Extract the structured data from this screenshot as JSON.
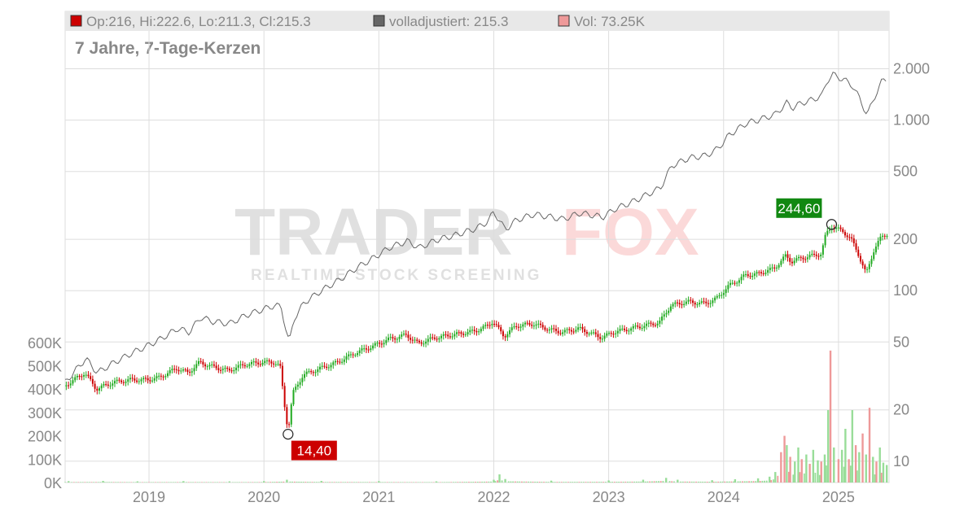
{
  "legend": {
    "ohlc_text": "Op:216, Hi:222.6, Lo:211.3, Cl:215.3",
    "adjusted_text": "volladjustiert: 215.3",
    "volume_text": "Vol: 73.25K"
  },
  "subtitle": "7 Jahre, 7-Tage-Kerzen",
  "watermark": {
    "brand_left": "TRADER",
    "brand_right": "FOX",
    "tagline": "REALTIME STOCK SCREENING"
  },
  "colors": {
    "up": "#22aa22",
    "down": "#cc0000",
    "adjusted_line": "#666666",
    "vol_up": "#99dd99",
    "vol_down": "#ee9999",
    "high_badge": "#118811",
    "low_badge": "#cc0000",
    "grid": "#dddddd",
    "text": "#888888"
  },
  "chart_data": {
    "type": "candlestick",
    "candle_period": "7-Tage-Kerzen",
    "y_scale": "log",
    "y_ticks": [
      {
        "value": 10,
        "label": "10"
      },
      {
        "value": 20,
        "label": "20"
      },
      {
        "value": 50,
        "label": "50"
      },
      {
        "value": 100,
        "label": "100"
      },
      {
        "value": 200,
        "label": "200"
      },
      {
        "value": 500,
        "label": "500"
      },
      {
        "value": 1000,
        "label": "1.000"
      },
      {
        "value": 2000,
        "label": "2.000"
      }
    ],
    "x_ticks": [
      {
        "value": 2019,
        "label": "2019"
      },
      {
        "value": 2020,
        "label": "2020"
      },
      {
        "value": 2021,
        "label": "2021"
      },
      {
        "value": 2022,
        "label": "2022"
      },
      {
        "value": 2023,
        "label": "2023"
      },
      {
        "value": 2024,
        "label": "2024"
      },
      {
        "value": 2025,
        "label": "2025"
      }
    ],
    "volume_ticks": [
      {
        "value": 0,
        "label": "0K"
      },
      {
        "value": 100000,
        "label": "100K"
      },
      {
        "value": 200000,
        "label": "200K"
      },
      {
        "value": 300000,
        "label": "300K"
      },
      {
        "value": 400000,
        "label": "400K"
      },
      {
        "value": 500000,
        "label": "500K"
      },
      {
        "value": 600000,
        "label": "600K"
      }
    ],
    "price_series": [
      [
        2018.27,
        27.5
      ],
      [
        2018.45,
        33
      ],
      [
        2018.55,
        26.5
      ],
      [
        2018.7,
        29
      ],
      [
        2018.85,
        30
      ],
      [
        2019.0,
        30
      ],
      [
        2019.1,
        31
      ],
      [
        2019.25,
        35
      ],
      [
        2019.35,
        33
      ],
      [
        2019.45,
        38
      ],
      [
        2019.55,
        36
      ],
      [
        2019.7,
        34
      ],
      [
        2019.85,
        37
      ],
      [
        2020.0,
        38
      ],
      [
        2020.1,
        38
      ],
      [
        2020.15,
        36
      ],
      [
        2020.19,
        21
      ],
      [
        2020.22,
        15
      ],
      [
        2020.26,
        25
      ],
      [
        2020.35,
        32
      ],
      [
        2020.5,
        35
      ],
      [
        2020.65,
        38
      ],
      [
        2020.8,
        43
      ],
      [
        2020.95,
        47
      ],
      [
        2021.1,
        52
      ],
      [
        2021.25,
        55
      ],
      [
        2021.35,
        49
      ],
      [
        2021.5,
        53
      ],
      [
        2021.65,
        55
      ],
      [
        2021.85,
        58
      ],
      [
        2021.95,
        62
      ],
      [
        2022.0,
        66
      ],
      [
        2022.1,
        54
      ],
      [
        2022.2,
        62
      ],
      [
        2022.35,
        64
      ],
      [
        2022.5,
        59
      ],
      [
        2022.6,
        57
      ],
      [
        2022.75,
        60
      ],
      [
        2022.95,
        53
      ],
      [
        2023.05,
        57
      ],
      [
        2023.2,
        60
      ],
      [
        2023.35,
        63
      ],
      [
        2023.45,
        65
      ],
      [
        2023.55,
        82
      ],
      [
        2023.7,
        86
      ],
      [
        2023.85,
        84
      ],
      [
        2023.95,
        90
      ],
      [
        2024.05,
        106
      ],
      [
        2024.2,
        123
      ],
      [
        2024.3,
        125
      ],
      [
        2024.45,
        135
      ],
      [
        2024.55,
        160
      ],
      [
        2024.6,
        148
      ],
      [
        2024.68,
        155
      ],
      [
        2024.78,
        160
      ],
      [
        2024.86,
        165
      ],
      [
        2024.9,
        215
      ],
      [
        2024.95,
        238
      ],
      [
        2025.05,
        222
      ],
      [
        2025.12,
        200
      ],
      [
        2025.18,
        165
      ],
      [
        2025.25,
        125
      ],
      [
        2025.32,
        175
      ],
      [
        2025.38,
        205
      ],
      [
        2025.42,
        215
      ]
    ],
    "adjusted_series": [
      [
        2018.27,
        29
      ],
      [
        2018.45,
        40
      ],
      [
        2018.55,
        33
      ],
      [
        2018.7,
        38
      ],
      [
        2018.85,
        43
      ],
      [
        2019.0,
        48
      ],
      [
        2019.1,
        52
      ],
      [
        2019.25,
        60
      ],
      [
        2019.35,
        57
      ],
      [
        2019.45,
        70
      ],
      [
        2019.55,
        66
      ],
      [
        2019.7,
        64
      ],
      [
        2019.85,
        72
      ],
      [
        2020.0,
        78
      ],
      [
        2020.1,
        82
      ],
      [
        2020.15,
        80
      ],
      [
        2020.19,
        60
      ],
      [
        2020.22,
        49
      ],
      [
        2020.26,
        68
      ],
      [
        2020.35,
        85
      ],
      [
        2020.5,
        100
      ],
      [
        2020.65,
        115
      ],
      [
        2020.8,
        135
      ],
      [
        2020.95,
        155
      ],
      [
        2021.1,
        180
      ],
      [
        2021.25,
        195
      ],
      [
        2021.35,
        178
      ],
      [
        2021.5,
        198
      ],
      [
        2021.65,
        210
      ],
      [
        2021.85,
        232
      ],
      [
        2021.95,
        255
      ],
      [
        2022.0,
        290
      ],
      [
        2022.1,
        228
      ],
      [
        2022.2,
        260
      ],
      [
        2022.35,
        280
      ],
      [
        2022.5,
        270
      ],
      [
        2022.6,
        262
      ],
      [
        2022.75,
        285
      ],
      [
        2022.95,
        270
      ],
      [
        2023.05,
        300
      ],
      [
        2023.2,
        330
      ],
      [
        2023.35,
        370
      ],
      [
        2023.45,
        400
      ],
      [
        2023.55,
        540
      ],
      [
        2023.7,
        600
      ],
      [
        2023.85,
        620
      ],
      [
        2023.95,
        680
      ],
      [
        2024.05,
        820
      ],
      [
        2024.2,
        960
      ],
      [
        2024.3,
        1000
      ],
      [
        2024.45,
        1080
      ],
      [
        2024.55,
        1260
      ],
      [
        2024.6,
        1180
      ],
      [
        2024.68,
        1260
      ],
      [
        2024.78,
        1320
      ],
      [
        2024.86,
        1400
      ],
      [
        2024.9,
        1700
      ],
      [
        2024.95,
        1850
      ],
      [
        2025.05,
        1720
      ],
      [
        2025.12,
        1600
      ],
      [
        2025.18,
        1350
      ],
      [
        2025.25,
        1070
      ],
      [
        2025.32,
        1400
      ],
      [
        2025.38,
        1700
      ],
      [
        2025.42,
        1750
      ]
    ],
    "volume_series": [
      [
        2018.3,
        6000
      ],
      [
        2018.6,
        7000
      ],
      [
        2018.9,
        5000
      ],
      [
        2019.3,
        6000
      ],
      [
        2019.7,
        5000
      ],
      [
        2020.0,
        6000
      ],
      [
        2020.2,
        12000
      ],
      [
        2020.5,
        7000
      ],
      [
        2021.0,
        6000
      ],
      [
        2021.5,
        5000
      ],
      [
        2022.0,
        12000
      ],
      [
        2022.05,
        35000
      ],
      [
        2022.1,
        15000
      ],
      [
        2022.5,
        8000
      ],
      [
        2023.0,
        9000
      ],
      [
        2023.3,
        12000
      ],
      [
        2023.5,
        20000
      ],
      [
        2023.6,
        12000
      ],
      [
        2023.9,
        10000
      ],
      [
        2024.1,
        14000
      ],
      [
        2024.3,
        18000
      ],
      [
        2024.4,
        25000
      ],
      [
        2024.45,
        45000
      ],
      [
        2024.5,
        130000
      ],
      [
        2024.53,
        200000
      ],
      [
        2024.55,
        160000
      ],
      [
        2024.58,
        110000
      ],
      [
        2024.62,
        90000
      ],
      [
        2024.65,
        150000
      ],
      [
        2024.68,
        100000
      ],
      [
        2024.72,
        120000
      ],
      [
        2024.75,
        80000
      ],
      [
        2024.78,
        140000
      ],
      [
        2024.82,
        95000
      ],
      [
        2024.85,
        90000
      ],
      [
        2024.88,
        120000
      ],
      [
        2024.91,
        310000
      ],
      [
        2024.93,
        565000
      ],
      [
        2024.96,
        150000
      ],
      [
        2025.0,
        100000
      ],
      [
        2025.03,
        140000
      ],
      [
        2025.06,
        230000
      ],
      [
        2025.09,
        100000
      ],
      [
        2025.12,
        310000
      ],
      [
        2025.15,
        160000
      ],
      [
        2025.18,
        130000
      ],
      [
        2025.21,
        210000
      ],
      [
        2025.24,
        120000
      ],
      [
        2025.27,
        320000
      ],
      [
        2025.3,
        110000
      ],
      [
        2025.33,
        90000
      ],
      [
        2025.36,
        150000
      ],
      [
        2025.39,
        85000
      ],
      [
        2025.42,
        75000
      ]
    ],
    "volume_down_dates": [
      2024.5,
      2024.53,
      2024.58,
      2024.68,
      2024.75,
      2024.85,
      2024.93,
      2025.0,
      2025.09,
      2025.15,
      2025.21,
      2025.27,
      2025.33
    ],
    "annotations": [
      {
        "date": 2024.94,
        "value": 244.6,
        "label": "244,60",
        "kind": "high"
      },
      {
        "date": 2020.21,
        "value": 14.4,
        "label": "14,40",
        "kind": "low"
      }
    ]
  }
}
